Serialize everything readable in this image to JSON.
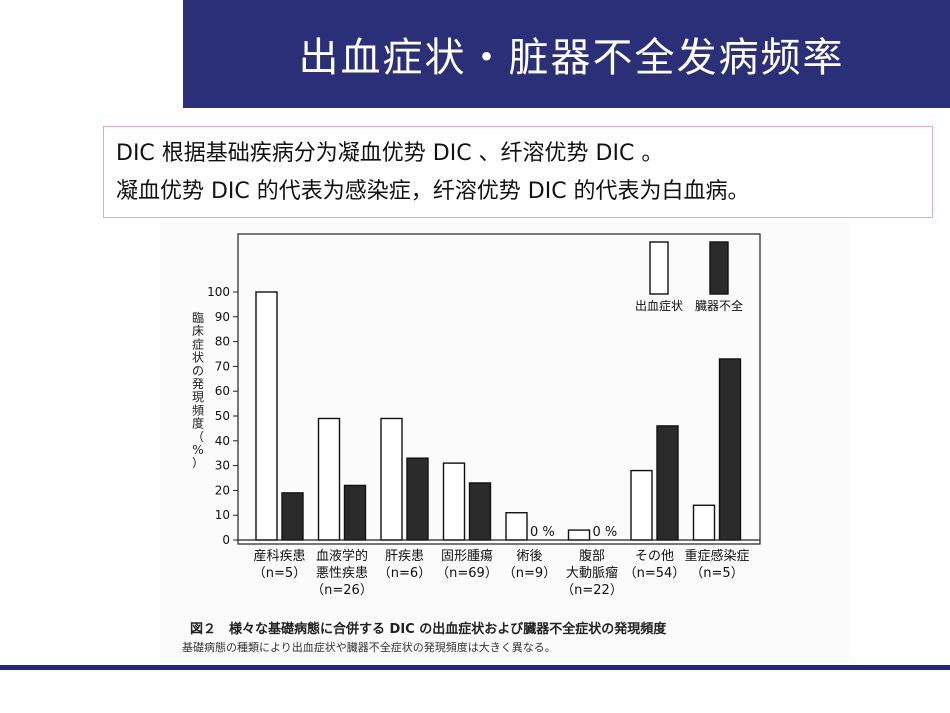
{
  "slide": {
    "title": "出血症状・脏器不全发病频率",
    "note_lines": [
      "DIC 根据基础疾病分为凝血优势 DIC 、纤溶优势 DIC 。",
      "凝血优势 DIC 的代表为感染症，纤溶优势 DIC 的代表为白血病。"
    ],
    "colors": {
      "banner": "#2a2f78",
      "rule": "#1f2a7a",
      "note_border": "#e7a9c2"
    }
  },
  "figure": {
    "caption_main": "図２　様々な基礎病態に合併する DIC の出血症状および臓器不全症状の発現頻度",
    "caption_sub": "基礎病態の種類により出血症状や臓器不全症状の発現頻度は大きく異なる。"
  },
  "chart_data": {
    "type": "bar",
    "ylabel": "臨床症状の発現頻度（%）",
    "ylim": [
      0,
      100
    ],
    "yticks": [
      0,
      10,
      20,
      30,
      40,
      50,
      60,
      70,
      80,
      90,
      100
    ],
    "categories": [
      {
        "lines": [
          "産科疾患",
          "（n=5）"
        ]
      },
      {
        "lines": [
          "血液学的",
          "悪性疾患",
          "（n=26）"
        ]
      },
      {
        "lines": [
          "肝疾患",
          "（n=6）"
        ]
      },
      {
        "lines": [
          "固形腫瘍",
          "（n=69）"
        ]
      },
      {
        "lines": [
          "術後",
          "（n=9）"
        ]
      },
      {
        "lines": [
          "腹部",
          "大動脈瘤",
          "（n=22）"
        ]
      },
      {
        "lines": [
          "その他",
          "（n=54）"
        ]
      },
      {
        "lines": [
          "重症感染症",
          "（n=5）"
        ]
      }
    ],
    "series": [
      {
        "name": "出血症状",
        "color": "#ffffff",
        "values": [
          100,
          49,
          49,
          31,
          11,
          4,
          28,
          14
        ]
      },
      {
        "name": "臓器不全",
        "color": "#2b2b2b",
        "values": [
          19,
          22,
          33,
          23,
          0,
          0,
          46,
          73
        ]
      }
    ],
    "zero_labels": [
      "0 %",
      "0 %"
    ],
    "legend_position": "top-right"
  }
}
